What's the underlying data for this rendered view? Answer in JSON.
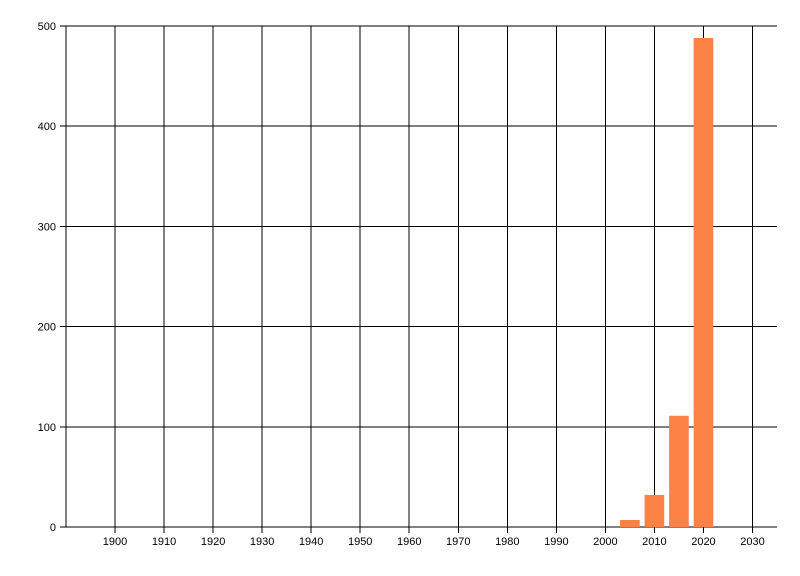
{
  "chart_data": {
    "type": "bar",
    "title": "",
    "xlabel": "",
    "ylabel": "",
    "x": [
      2005,
      2010,
      2015,
      2020
    ],
    "values": [
      7,
      32,
      111,
      488
    ],
    "bar_width_years": 4,
    "xlim": [
      1890,
      2035
    ],
    "ylim": [
      0,
      500
    ],
    "xticks": [
      1900,
      1910,
      1920,
      1930,
      1940,
      1950,
      1960,
      1970,
      1980,
      1990,
      2000,
      2010,
      2020,
      2030
    ],
    "yticks": [
      0,
      100,
      200,
      300,
      400,
      500
    ],
    "grid": true,
    "legend": false,
    "colors": {
      "bar": "#fb8144",
      "grid": "#000000",
      "axis": "#000000",
      "tick_label": "#000000",
      "background": "#ffffff"
    }
  }
}
